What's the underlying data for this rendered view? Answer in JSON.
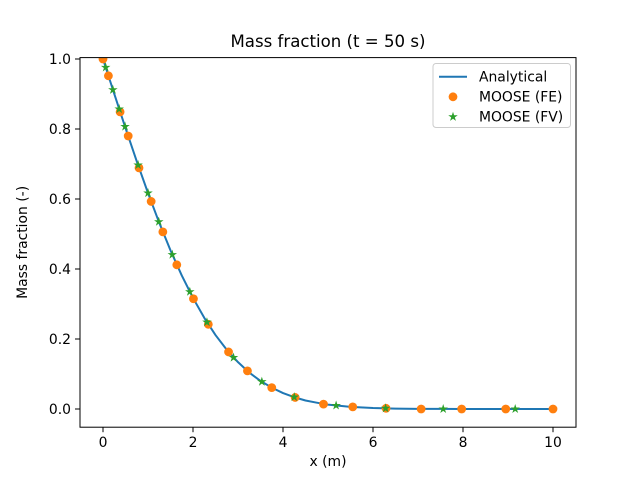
{
  "chart_data": {
    "type": "line",
    "title": "Mass fraction (t = 50 s)",
    "xlabel": "x (m)",
    "ylabel": "Mass fraction (-)",
    "xlim": [
      -0.511,
      10.511
    ],
    "ylim": [
      -0.052,
      1.004
    ],
    "grid": false,
    "legend_position": "upper right",
    "xticks": {
      "values": [
        0,
        2,
        4,
        6,
        8,
        10
      ],
      "labels": [
        "0",
        "2",
        "4",
        "6",
        "8",
        "10"
      ]
    },
    "yticks": {
      "values": [
        0.0,
        0.2,
        0.4,
        0.6,
        0.8,
        1.0
      ],
      "labels": [
        "0.0",
        "0.2",
        "0.4",
        "0.6",
        "0.8",
        "1.0"
      ]
    },
    "series": [
      {
        "name": "Analytical",
        "type": "line",
        "color": "#1f77b4",
        "x": [
          0,
          0.25,
          0.5,
          0.75,
          1.0,
          1.25,
          1.5,
          1.75,
          2.0,
          2.25,
          2.5,
          2.75,
          3.0,
          3.25,
          3.5,
          3.75,
          4.0,
          4.25,
          4.5,
          4.75,
          5.0,
          5.5,
          6.0,
          6.5,
          7.0,
          7.5,
          8.0,
          9.0,
          10.0
        ],
        "y": [
          1.0,
          0.9005,
          0.8026,
          0.7077,
          0.6171,
          0.532,
          0.4532,
          0.3816,
          0.3173,
          0.2606,
          0.2113,
          0.1694,
          0.1338,
          0.104,
          0.0803,
          0.061,
          0.0456,
          0.0336,
          0.0243,
          0.0181,
          0.0125,
          0.006,
          0.0027,
          0.0011,
          0.0005,
          0.0002,
          0.0001,
          0.0,
          0.0
        ]
      },
      {
        "name": "MOOSE (FE)",
        "type": "scatter",
        "marker": "circle",
        "color": "#ff7f0e",
        "x": [
          0,
          0.12,
          0.38,
          0.56,
          0.8,
          1.07,
          1.33,
          1.64,
          2.01,
          2.34,
          2.79,
          3.21,
          3.75,
          4.27,
          4.9,
          5.55,
          6.29,
          7.07,
          7.97,
          8.95,
          10.0
        ],
        "y": [
          1.0,
          0.952,
          0.849,
          0.78,
          0.689,
          0.593,
          0.506,
          0.412,
          0.315,
          0.242,
          0.163,
          0.109,
          0.061,
          0.033,
          0.014,
          0.006,
          0.002,
          0.0,
          0.0,
          0.0,
          0.0
        ]
      },
      {
        "name": "MOOSE (FV)",
        "type": "scatter",
        "marker": "star",
        "color": "#2ca02c",
        "x": [
          0.06,
          0.22,
          0.36,
          0.49,
          0.78,
          1.0,
          1.24,
          1.54,
          1.93,
          2.31,
          2.9,
          3.53,
          4.25,
          5.18,
          6.28,
          7.56,
          9.16
        ],
        "y": [
          0.976,
          0.912,
          0.857,
          0.807,
          0.697,
          0.617,
          0.535,
          0.441,
          0.335,
          0.248,
          0.147,
          0.078,
          0.034,
          0.01,
          0.002,
          0.0,
          0.0
        ]
      }
    ],
    "colors": {
      "analytical": "#1f77b4",
      "moose_fe": "#ff7f0e",
      "moose_fv": "#2ca02c",
      "spine": "#000000",
      "legend_border": "#cccccc",
      "background": "#ffffff",
      "text": "#000000"
    }
  }
}
